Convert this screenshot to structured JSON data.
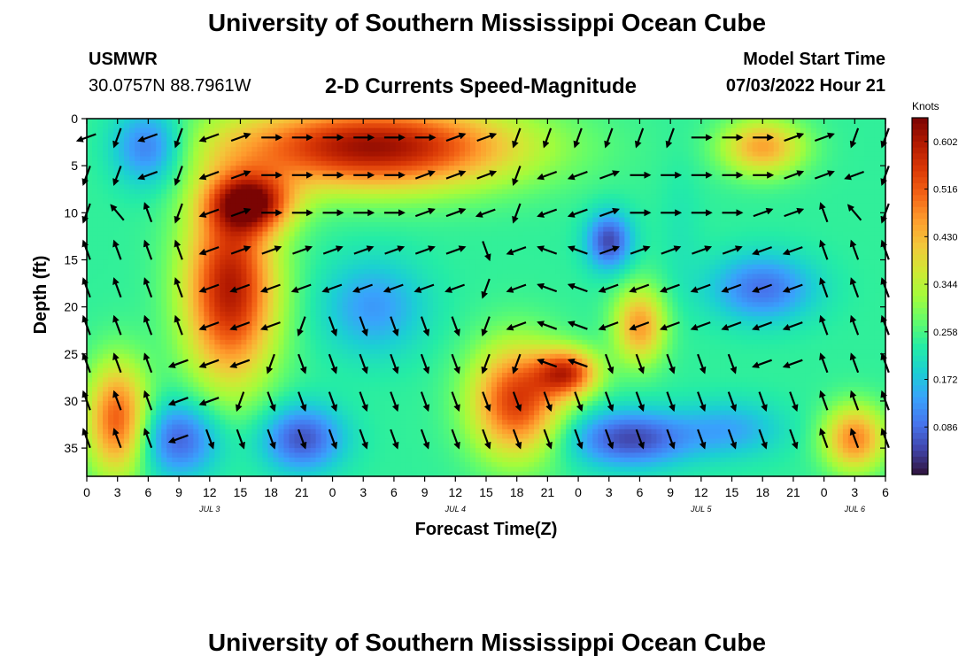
{
  "header": {
    "title": "University of Southern Mississippi Ocean Cube",
    "station_name": "USMWR",
    "station_coords": "30.0757N  88.7961W",
    "subtitle": "2-D Currents Speed-Magnitude",
    "model_start_label": "Model Start Time",
    "model_start_value": "07/03/2022 Hour 21"
  },
  "footer": {
    "title": "University of Southern Mississippi Ocean Cube"
  },
  "chart_data": {
    "type": "heatmap",
    "xlabel": "Forecast Time(Z)",
    "ylabel": "Depth (ft)",
    "colorbar_label": "Knots",
    "x_tick_labels": [
      "0",
      "3",
      "6",
      "9",
      "12",
      "15",
      "18",
      "21",
      "0",
      "3",
      "6",
      "9",
      "12",
      "15",
      "18",
      "21",
      "0",
      "3",
      "6",
      "9",
      "12",
      "15",
      "18",
      "21",
      "0",
      "3",
      "6"
    ],
    "date_labels": [
      {
        "label": "JUL 3",
        "hour": 12
      },
      {
        "label": "JUL 4",
        "hour": 36
      },
      {
        "label": "JUL 5",
        "hour": 60
      },
      {
        "label": "JUL 6",
        "hour": 75
      }
    ],
    "x_range_hours": [
      0,
      78
    ],
    "y_ticks": [
      0,
      5,
      10,
      15,
      20,
      25,
      30,
      35
    ],
    "y_range_ft": [
      0,
      38
    ],
    "colorbar_ticks": [
      "0.602",
      "0.516",
      "0.430",
      "0.344",
      "0.258",
      "0.172",
      "0.086"
    ],
    "colorbar_range": [
      0.0,
      0.645
    ],
    "colormap": [
      "#30123b",
      "#4145ab",
      "#4675ed",
      "#39a2fc",
      "#1bcfd4",
      "#24eca6",
      "#61fc6c",
      "#a4fc3b",
      "#d1e834",
      "#f3c63a",
      "#fe9b2d",
      "#f36315",
      "#d93806",
      "#b11901",
      "#7a0403"
    ],
    "speed_blobs": [
      {
        "hour": 6,
        "depth": 3,
        "value": 0.08,
        "sx": 3.5,
        "sy": 4
      },
      {
        "hour": 3,
        "depth": 32,
        "value": 0.52,
        "sx": 3,
        "sy": 6
      },
      {
        "hour": 9,
        "depth": 34,
        "value": 0.07,
        "sx": 4,
        "sy": 4
      },
      {
        "hour": 14,
        "depth": 18,
        "value": 0.6,
        "sx": 4.5,
        "sy": 10
      },
      {
        "hour": 28,
        "depth": 3,
        "value": 0.62,
        "sx": 14,
        "sy": 4.5
      },
      {
        "hour": 16,
        "depth": 9,
        "value": 0.56,
        "sx": 4,
        "sy": 3
      },
      {
        "hour": 21,
        "depth": 34,
        "value": 0.06,
        "sx": 4,
        "sy": 3.5
      },
      {
        "hour": 28,
        "depth": 20,
        "value": 0.13,
        "sx": 5,
        "sy": 5
      },
      {
        "hour": 42,
        "depth": 30,
        "value": 0.55,
        "sx": 4.5,
        "sy": 6
      },
      {
        "hour": 47,
        "depth": 27,
        "value": 0.52,
        "sx": 3,
        "sy": 2.5
      },
      {
        "hour": 51,
        "depth": 13,
        "value": 0.05,
        "sx": 2.2,
        "sy": 3
      },
      {
        "hour": 53,
        "depth": 34,
        "value": 0.05,
        "sx": 6,
        "sy": 3
      },
      {
        "hour": 54,
        "depth": 22,
        "value": 0.46,
        "sx": 2.5,
        "sy": 4
      },
      {
        "hour": 66,
        "depth": 18,
        "value": 0.09,
        "sx": 5,
        "sy": 3.5
      },
      {
        "hour": 66,
        "depth": 3,
        "value": 0.45,
        "sx": 4,
        "sy": 3
      },
      {
        "hour": 75,
        "depth": 34,
        "value": 0.48,
        "sx": 3,
        "sy": 3.5
      },
      {
        "hour": 63,
        "depth": 33,
        "value": 0.15,
        "sx": 5,
        "sy": 3
      },
      {
        "hour": 58,
        "depth": 12,
        "value": 0.22,
        "sx": 2,
        "sy": 8
      }
    ],
    "vector_hours": [
      0,
      3,
      6,
      9,
      12,
      15,
      18,
      21,
      24,
      27,
      30,
      33,
      36,
      39,
      42,
      45,
      48,
      51,
      54,
      57,
      60,
      63,
      66,
      69,
      72,
      75,
      78
    ],
    "vector_depths": [
      2,
      6,
      10,
      14,
      18,
      22,
      26,
      30,
      34
    ],
    "vector_angles_deg": [
      [
        200,
        250,
        200,
        250,
        200,
        20,
        0,
        0,
        0,
        0,
        0,
        0,
        20,
        20,
        250,
        250,
        250,
        250,
        250,
        250,
        0,
        0,
        0,
        20,
        20,
        250,
        250
      ],
      [
        250,
        250,
        200,
        250,
        200,
        20,
        0,
        0,
        0,
        0,
        0,
        20,
        20,
        20,
        250,
        200,
        200,
        20,
        0,
        0,
        0,
        0,
        0,
        20,
        20,
        200,
        250
      ],
      [
        250,
        130,
        110,
        250,
        200,
        20,
        0,
        0,
        0,
        0,
        0,
        20,
        20,
        200,
        250,
        200,
        200,
        20,
        0,
        0,
        0,
        0,
        20,
        20,
        110,
        130,
        250
      ],
      [
        110,
        110,
        110,
        110,
        200,
        20,
        20,
        20,
        20,
        20,
        20,
        20,
        20,
        290,
        200,
        160,
        160,
        20,
        20,
        20,
        20,
        20,
        200,
        200,
        110,
        110,
        110
      ],
      [
        110,
        110,
        110,
        110,
        200,
        200,
        200,
        200,
        200,
        200,
        200,
        200,
        200,
        250,
        200,
        160,
        160,
        200,
        200,
        200,
        200,
        200,
        200,
        200,
        110,
        110,
        110
      ],
      [
        110,
        110,
        110,
        110,
        200,
        200,
        200,
        250,
        290,
        290,
        290,
        290,
        290,
        250,
        200,
        160,
        160,
        200,
        200,
        200,
        200,
        200,
        200,
        200,
        110,
        110,
        110
      ],
      [
        110,
        110,
        110,
        200,
        200,
        200,
        250,
        290,
        290,
        290,
        290,
        290,
        290,
        250,
        250,
        160,
        160,
        290,
        290,
        290,
        290,
        290,
        200,
        200,
        110,
        110,
        110
      ],
      [
        110,
        110,
        110,
        200,
        200,
        250,
        290,
        290,
        290,
        290,
        290,
        290,
        290,
        290,
        290,
        290,
        290,
        290,
        290,
        290,
        290,
        290,
        290,
        290,
        110,
        110,
        110
      ],
      [
        110,
        110,
        110,
        200,
        290,
        290,
        290,
        290,
        290,
        290,
        290,
        290,
        290,
        290,
        290,
        290,
        290,
        290,
        290,
        290,
        290,
        290,
        290,
        290,
        110,
        110,
        110
      ]
    ]
  }
}
